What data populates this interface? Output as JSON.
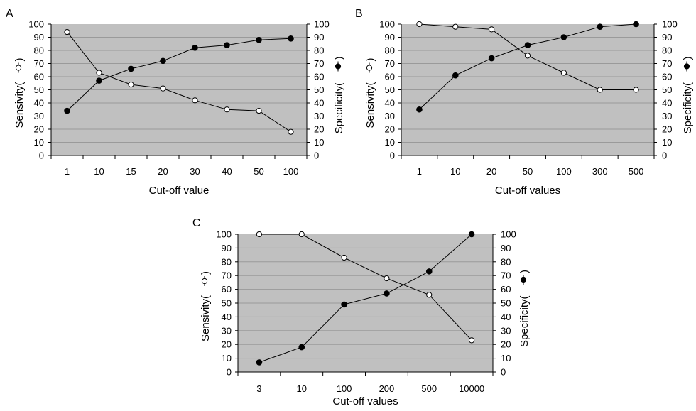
{
  "colors": {
    "plot_bg": "#c0c0c0",
    "grid": "#9a9a9a",
    "line": "#000000",
    "open_marker_fill": "#ffffff",
    "filled_marker_fill": "#000000"
  },
  "chart_data": [
    {
      "panel_label": "A",
      "type": "line",
      "categories": [
        "1",
        "10",
        "15",
        "20",
        "30",
        "40",
        "50",
        "100"
      ],
      "xlabel": "Cut-off value",
      "ylabel_left": "Sensivity(",
      "ylabel_right": "Specificity(",
      "ylim": [
        0,
        100
      ],
      "yticks": [
        0,
        10,
        20,
        30,
        40,
        50,
        60,
        70,
        80,
        90,
        100
      ],
      "grid": true,
      "series": [
        {
          "marker": "open-circle",
          "axis": "left",
          "values": [
            94,
            63,
            54,
            51,
            42,
            35,
            34,
            18
          ]
        },
        {
          "marker": "filled-circle",
          "axis": "right",
          "values": [
            34,
            57,
            66,
            72,
            82,
            84,
            88,
            89
          ]
        }
      ]
    },
    {
      "panel_label": "B",
      "type": "line",
      "categories": [
        "1",
        "10",
        "20",
        "50",
        "100",
        "300",
        "500"
      ],
      "xlabel": "Cut-off values",
      "ylabel_left": "Sensivity(",
      "ylabel_right": "Specificity(",
      "ylim": [
        0,
        100
      ],
      "yticks": [
        0,
        10,
        20,
        30,
        40,
        50,
        60,
        70,
        80,
        90,
        100
      ],
      "grid": true,
      "series": [
        {
          "marker": "open-circle",
          "axis": "left",
          "values": [
            100,
            98,
            96,
            76,
            63,
            50,
            50
          ]
        },
        {
          "marker": "filled-circle",
          "axis": "right",
          "values": [
            35,
            61,
            74,
            84,
            90,
            98,
            100
          ]
        }
      ]
    },
    {
      "panel_label": "C",
      "type": "line",
      "categories": [
        "3",
        "10",
        "100",
        "200",
        "500",
        "10000"
      ],
      "xlabel": "Cut-off values",
      "ylabel_left": "Sensivity(",
      "ylabel_right": "Specificity(",
      "ylim": [
        0,
        100
      ],
      "yticks": [
        0,
        10,
        20,
        30,
        40,
        50,
        60,
        70,
        80,
        90,
        100
      ],
      "grid": true,
      "series": [
        {
          "marker": "open-circle",
          "axis": "left",
          "values": [
            100,
            100,
            83,
            68,
            56,
            23
          ]
        },
        {
          "marker": "filled-circle",
          "axis": "right",
          "values": [
            7,
            18,
            49,
            57,
            73,
            100
          ]
        }
      ]
    }
  ]
}
